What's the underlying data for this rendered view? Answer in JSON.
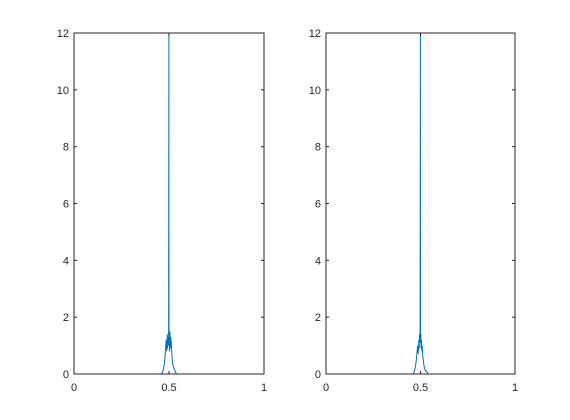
{
  "chart_data": [
    {
      "type": "line",
      "xlim": [
        0,
        1
      ],
      "ylim": [
        0,
        12
      ],
      "xticks": [
        "0",
        "0.5",
        "1"
      ],
      "yticks": [
        "0",
        "2",
        "4",
        "6",
        "8",
        "10",
        "12"
      ],
      "grid": false,
      "series_color": "#0072BD",
      "series": [
        {
          "x": [
            0,
            0.46,
            0.468,
            0.474,
            0.478,
            0.482,
            0.485,
            0.488,
            0.491,
            0.493,
            0.495,
            0.497,
            0.498,
            0.4995,
            0.5,
            0.5005,
            0.502,
            0.503,
            0.505,
            0.507,
            0.509,
            0.512,
            0.515,
            0.518,
            0.522,
            0.526,
            0.532,
            0.54,
            1
          ],
          "y": [
            0,
            0,
            0.1,
            0.3,
            0.5,
            0.9,
            1.2,
            0.8,
            1.4,
            0.9,
            1.3,
            1.0,
            1.2,
            12.0,
            1.5,
            1.0,
            1.4,
            0.8,
            1.5,
            0.9,
            1.3,
            1.1,
            0.7,
            0.4,
            0.3,
            0.2,
            0.1,
            0,
            0
          ]
        }
      ]
    },
    {
      "type": "line",
      "xlim": [
        0,
        1
      ],
      "ylim": [
        0,
        12
      ],
      "xticks": [
        "0",
        "0.5",
        "1"
      ],
      "yticks": [
        "0",
        "2",
        "4",
        "6",
        "8",
        "10",
        "12"
      ],
      "grid": false,
      "series_color": "#0072BD",
      "series": [
        {
          "x": [
            0,
            0.46,
            0.468,
            0.474,
            0.478,
            0.482,
            0.485,
            0.488,
            0.491,
            0.493,
            0.495,
            0.497,
            0.498,
            0.4995,
            0.5,
            0.5005,
            0.502,
            0.503,
            0.505,
            0.507,
            0.509,
            0.512,
            0.515,
            0.518,
            0.522,
            0.526,
            0.532,
            0.54,
            1
          ],
          "y": [
            0,
            0,
            0.1,
            0.3,
            0.5,
            0.8,
            1.0,
            0.7,
            1.2,
            0.9,
            1.4,
            1.1,
            1.8,
            12.0,
            1.6,
            1.2,
            1.4,
            0.9,
            1.2,
            0.8,
            1.0,
            0.6,
            0.5,
            0.3,
            0.2,
            0.1,
            0.1,
            0,
            0
          ]
        }
      ]
    }
  ]
}
